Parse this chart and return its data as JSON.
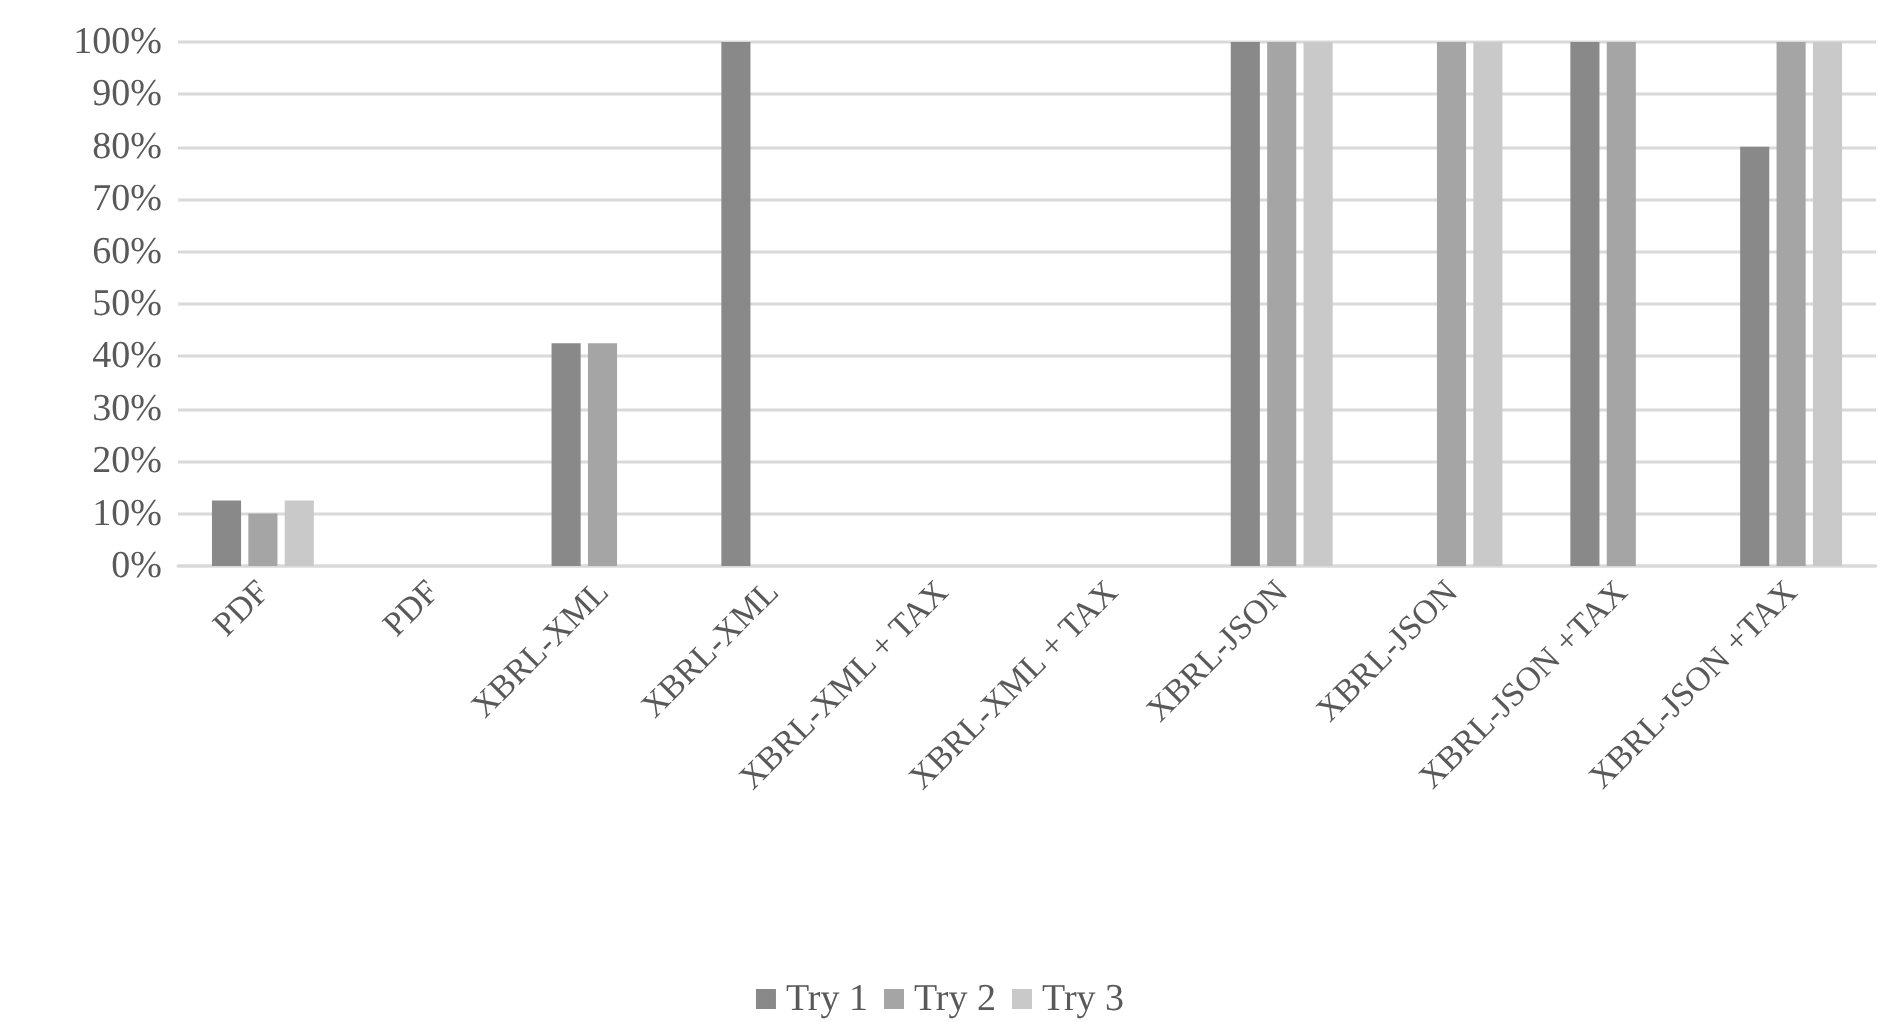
{
  "chart_data": {
    "type": "bar",
    "categories": [
      "PDF",
      "PDF",
      "XBRL-XML",
      "XBRL-XML",
      "XBRL-XML + TAX",
      "XBRL-XML + TAX",
      "XBRL-JSON",
      "XBRL-JSON",
      "XBRL-JSON +TAX",
      "XBRL-JSON +TAX"
    ],
    "series": [
      {
        "name": "Try 1",
        "color": "#898989",
        "values": [
          12.5,
          null,
          42.5,
          100,
          null,
          null,
          100,
          null,
          100,
          80
        ]
      },
      {
        "name": "Try 2",
        "color": "#a5a5a5",
        "values": [
          10,
          null,
          42.5,
          null,
          null,
          null,
          100,
          100,
          100,
          100
        ]
      },
      {
        "name": "Try 3",
        "color": "#c9c9c9",
        "values": [
          12.5,
          null,
          null,
          null,
          null,
          null,
          100,
          100,
          null,
          100
        ]
      }
    ],
    "ylim": [
      0,
      100
    ],
    "yticks": [
      {
        "value": 0,
        "label": "0%"
      },
      {
        "value": 10,
        "label": "10%"
      },
      {
        "value": 20,
        "label": "20%"
      },
      {
        "value": 30,
        "label": "30%"
      },
      {
        "value": 40,
        "label": "40%"
      },
      {
        "value": 50,
        "label": "50%"
      },
      {
        "value": 60,
        "label": "60%"
      },
      {
        "value": 70,
        "label": "70%"
      },
      {
        "value": 80,
        "label": "80%"
      },
      {
        "value": 90,
        "label": "90%"
      },
      {
        "value": 100,
        "label": "100%"
      }
    ],
    "grid": "y",
    "legend": "bottom"
  }
}
